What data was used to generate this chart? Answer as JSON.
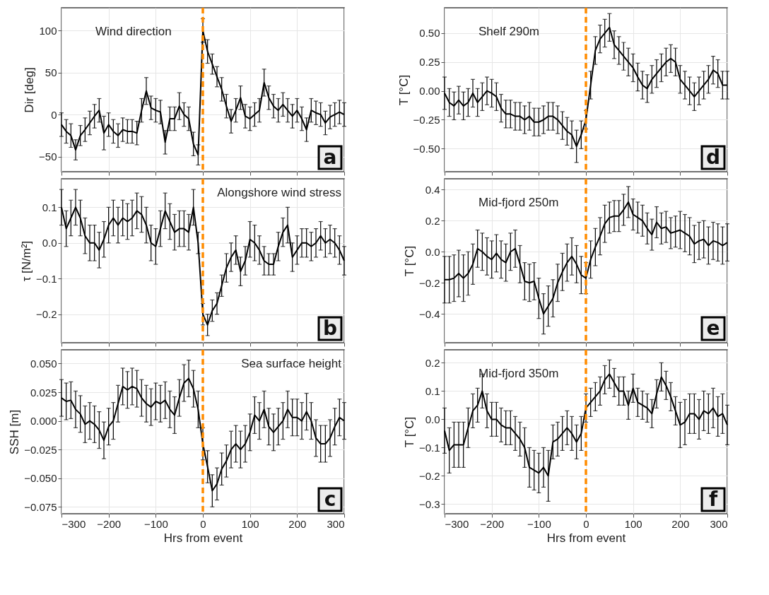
{
  "chart_data": [
    {
      "type": "line",
      "ylabel": "Dir [deg]",
      "annotations": [
        "Wind direction",
        "a"
      ],
      "xlim": [
        -300,
        300
      ],
      "xticks": [
        -300,
        -200,
        -100,
        0,
        100,
        200,
        300
      ],
      "ylim": [
        -68,
        127
      ],
      "yticks": [
        -50,
        0,
        50,
        100
      ],
      "grid": true,
      "marker": "none",
      "line_style": "solid",
      "tick_labels": "y",
      "x": [
        -300,
        -290,
        -280,
        -270,
        -260,
        -250,
        -240,
        -230,
        -220,
        -210,
        -200,
        -190,
        -180,
        -170,
        -160,
        -150,
        -140,
        -130,
        -120,
        -110,
        -100,
        -90,
        -80,
        -70,
        -60,
        -50,
        -40,
        -30,
        -20,
        -10,
        0,
        10,
        20,
        30,
        40,
        50,
        60,
        70,
        80,
        90,
        100,
        110,
        120,
        130,
        140,
        150,
        160,
        170,
        180,
        190,
        200,
        210,
        220,
        230,
        240,
        250,
        260,
        270,
        280,
        290,
        300
      ],
      "series": [
        {
          "color": "#000000",
          "values": [
            -12,
            -20,
            -25,
            -42,
            -25,
            -18,
            -10,
            -2,
            5,
            -22,
            -12,
            -20,
            -25,
            -18,
            -20,
            -20,
            -22,
            5,
            28,
            8,
            5,
            3,
            -33,
            -5,
            -5,
            10,
            0,
            -5,
            -35,
            -48,
            100,
            75,
            60,
            45,
            30,
            10,
            -8,
            5,
            20,
            -2,
            -5,
            0,
            5,
            38,
            20,
            10,
            5,
            12,
            5,
            -2,
            5,
            -5,
            -18,
            5,
            2,
            0,
            -10,
            -3,
            0,
            3,
            0
          ],
          "errors": [
            14,
            14,
            14,
            12,
            12,
            14,
            14,
            14,
            14,
            20,
            14,
            14,
            14,
            14,
            14,
            14,
            14,
            14,
            16,
            14,
            14,
            14,
            14,
            14,
            14,
            16,
            14,
            14,
            14,
            12,
            14,
            14,
            12,
            12,
            14,
            14,
            14,
            14,
            14,
            14,
            14,
            14,
            14,
            16,
            14,
            14,
            14,
            14,
            14,
            14,
            14,
            14,
            14,
            14,
            14,
            14,
            14,
            14,
            14,
            14,
            14
          ]
        }
      ],
      "ref_lines": [
        {
          "axis": "x",
          "value": 0,
          "color": "#ff8c00",
          "line_style": "dashed"
        }
      ]
    },
    {
      "type": "line",
      "ylabel": "T [°C]",
      "annotations": [
        "Shelf 290m",
        "d"
      ],
      "xlim": [
        -300,
        300
      ],
      "xticks": [
        -300,
        -200,
        -100,
        0,
        100,
        200,
        300
      ],
      "ylim": [
        -0.7,
        0.72
      ],
      "yticks": [
        {
          "value": -0.5,
          "label": "−0.50"
        },
        {
          "value": -0.25,
          "label": "−0.25"
        },
        {
          "value": 0,
          "label": "0.00"
        },
        0.25,
        {
          "value": 0.5,
          "label": "0.50"
        }
      ],
      "grid": true,
      "marker": "none",
      "line_style": "solid",
      "tick_labels": "y",
      "x": [
        -300,
        -290,
        -280,
        -270,
        -260,
        -250,
        -240,
        -230,
        -220,
        -210,
        -200,
        -190,
        -180,
        -170,
        -160,
        -150,
        -140,
        -130,
        -120,
        -110,
        -100,
        -90,
        -80,
        -70,
        -60,
        -50,
        -40,
        -30,
        -20,
        -10,
        0,
        10,
        20,
        30,
        40,
        50,
        60,
        70,
        80,
        90,
        100,
        110,
        120,
        130,
        140,
        150,
        160,
        170,
        180,
        190,
        200,
        210,
        220,
        230,
        240,
        250,
        260,
        270,
        280,
        290,
        300
      ],
      "series": [
        {
          "color": "#000000",
          "values": [
            -0.02,
            -0.1,
            -0.13,
            -0.08,
            -0.13,
            -0.1,
            -0.02,
            -0.1,
            -0.05,
            0.0,
            -0.02,
            -0.05,
            -0.15,
            -0.2,
            -0.2,
            -0.22,
            -0.22,
            -0.25,
            -0.22,
            -0.27,
            -0.27,
            -0.25,
            -0.22,
            -0.22,
            -0.25,
            -0.3,
            -0.35,
            -0.38,
            -0.48,
            -0.38,
            -0.25,
            0.05,
            0.35,
            0.45,
            0.5,
            0.55,
            0.4,
            0.35,
            0.3,
            0.25,
            0.2,
            0.12,
            0.05,
            0.02,
            0.1,
            0.15,
            0.2,
            0.25,
            0.28,
            0.25,
            0.1,
            0.05,
            0.0,
            -0.05,
            0.0,
            0.05,
            0.1,
            0.18,
            0.15,
            0.05,
            0.05
          ],
          "errors": [
            0.14,
            0.12,
            0.12,
            0.12,
            0.12,
            0.12,
            0.12,
            0.12,
            0.12,
            0.12,
            0.12,
            0.12,
            0.12,
            0.12,
            0.12,
            0.12,
            0.12,
            0.12,
            0.12,
            0.12,
            0.12,
            0.12,
            0.12,
            0.12,
            0.12,
            0.12,
            0.12,
            0.12,
            0.14,
            0.12,
            0.08,
            0.12,
            0.12,
            0.12,
            0.12,
            0.12,
            0.12,
            0.12,
            0.12,
            0.12,
            0.12,
            0.12,
            0.12,
            0.12,
            0.12,
            0.12,
            0.12,
            0.12,
            0.12,
            0.12,
            0.12,
            0.12,
            0.12,
            0.12,
            0.12,
            0.12,
            0.12,
            0.12,
            0.12,
            0.12,
            0.12
          ]
        }
      ],
      "ref_lines": [
        {
          "axis": "x",
          "value": 0,
          "color": "#ff8c00",
          "line_style": "dashed"
        }
      ]
    },
    {
      "type": "line",
      "ylabel": "τ [N/m²]",
      "annotations": [
        "Alongshore wind stress",
        "b"
      ],
      "xlim": [
        -300,
        300
      ],
      "xticks": [
        -300,
        -200,
        -100,
        0,
        100,
        200,
        300
      ],
      "ylim": [
        -0.28,
        0.18
      ],
      "yticks": [
        -0.2,
        -0.1,
        {
          "value": 0,
          "label": "0.0"
        },
        0.1
      ],
      "grid": true,
      "marker": "none",
      "line_style": "solid",
      "tick_labels": "y",
      "x": [
        -300,
        -290,
        -280,
        -270,
        -260,
        -250,
        -240,
        -230,
        -220,
        -210,
        -200,
        -190,
        -180,
        -170,
        -160,
        -150,
        -140,
        -130,
        -120,
        -110,
        -100,
        -90,
        -80,
        -70,
        -60,
        -50,
        -40,
        -30,
        -20,
        -10,
        0,
        10,
        20,
        30,
        40,
        50,
        60,
        70,
        80,
        90,
        100,
        110,
        120,
        130,
        140,
        150,
        160,
        170,
        180,
        190,
        200,
        210,
        220,
        230,
        240,
        250,
        260,
        270,
        280,
        290,
        300
      ],
      "series": [
        {
          "color": "#000000",
          "values": [
            0.1,
            0.04,
            0.07,
            0.1,
            0.07,
            0.02,
            0.0,
            0.0,
            -0.02,
            0.01,
            0.05,
            0.07,
            0.05,
            0.07,
            0.06,
            0.07,
            0.09,
            0.08,
            0.05,
            0.0,
            -0.01,
            0.04,
            0.09,
            0.06,
            0.03,
            0.04,
            0.04,
            0.03,
            0.1,
            0.0,
            -0.2,
            -0.23,
            -0.19,
            -0.17,
            -0.12,
            -0.07,
            -0.04,
            -0.02,
            -0.08,
            -0.05,
            0.01,
            0.0,
            -0.02,
            -0.05,
            -0.06,
            -0.06,
            -0.01,
            0.03,
            0.05,
            -0.04,
            -0.02,
            0.0,
            0.0,
            -0.01,
            0.0,
            0.02,
            0.0,
            0.01,
            0.0,
            -0.02,
            -0.05
          ],
          "errors": [
            0.05,
            0.05,
            0.05,
            0.05,
            0.05,
            0.05,
            0.05,
            0.05,
            0.05,
            0.05,
            0.05,
            0.05,
            0.05,
            0.05,
            0.05,
            0.05,
            0.05,
            0.05,
            0.05,
            0.05,
            0.05,
            0.05,
            0.05,
            0.05,
            0.05,
            0.05,
            0.05,
            0.05,
            0.05,
            0.03,
            0.03,
            0.03,
            0.03,
            0.03,
            0.03,
            0.04,
            0.04,
            0.04,
            0.04,
            0.04,
            0.05,
            0.05,
            0.04,
            0.04,
            0.03,
            0.03,
            0.04,
            0.04,
            0.05,
            0.04,
            0.04,
            0.04,
            0.04,
            0.04,
            0.04,
            0.04,
            0.04,
            0.04,
            0.04,
            0.04,
            0.04
          ]
        }
      ],
      "ref_lines": [
        {
          "axis": "x",
          "value": 0,
          "color": "#ff8c00",
          "line_style": "dashed"
        }
      ]
    },
    {
      "type": "line",
      "ylabel": "T [°C]",
      "annotations": [
        "Mid-fjord 250m",
        "e"
      ],
      "xlim": [
        -300,
        300
      ],
      "xticks": [
        -300,
        -200,
        -100,
        0,
        100,
        200,
        300
      ],
      "ylim": [
        -0.586,
        0.47
      ],
      "yticks": [
        -0.4,
        -0.2,
        {
          "value": 0,
          "label": "0.0"
        },
        0.2,
        0.4
      ],
      "grid": true,
      "marker": "none",
      "line_style": "solid",
      "tick_labels": "y",
      "x": [
        -300,
        -290,
        -280,
        -270,
        -260,
        -250,
        -240,
        -230,
        -220,
        -210,
        -200,
        -190,
        -180,
        -170,
        -160,
        -150,
        -140,
        -130,
        -120,
        -110,
        -100,
        -90,
        -80,
        -70,
        -60,
        -50,
        -40,
        -30,
        -20,
        -10,
        0,
        10,
        20,
        30,
        40,
        50,
        60,
        70,
        80,
        90,
        100,
        110,
        120,
        130,
        140,
        150,
        160,
        170,
        180,
        190,
        200,
        210,
        220,
        230,
        240,
        250,
        260,
        270,
        280,
        290,
        300
      ],
      "series": [
        {
          "color": "#000000",
          "values": [
            -0.18,
            -0.18,
            -0.17,
            -0.14,
            -0.17,
            -0.14,
            -0.08,
            0.02,
            0.0,
            -0.03,
            -0.05,
            -0.01,
            -0.05,
            -0.07,
            0.0,
            0.02,
            -0.08,
            -0.19,
            -0.2,
            -0.19,
            -0.3,
            -0.4,
            -0.35,
            -0.3,
            -0.2,
            -0.13,
            -0.07,
            -0.03,
            -0.08,
            -0.15,
            -0.17,
            -0.05,
            0.03,
            0.1,
            0.18,
            0.22,
            0.23,
            0.23,
            0.27,
            0.32,
            0.24,
            0.22,
            0.2,
            0.15,
            0.11,
            0.19,
            0.15,
            0.16,
            0.12,
            0.13,
            0.14,
            0.12,
            0.1,
            0.05,
            0.07,
            0.08,
            0.04,
            0.07,
            0.06,
            0.04,
            0.06
          ],
          "errors": [
            0.15,
            0.15,
            0.15,
            0.15,
            0.15,
            0.14,
            0.13,
            0.12,
            0.12,
            0.12,
            0.12,
            0.12,
            0.12,
            0.12,
            0.12,
            0.12,
            0.12,
            0.12,
            0.12,
            0.12,
            0.13,
            0.13,
            0.13,
            0.12,
            0.12,
            0.12,
            0.12,
            0.12,
            0.12,
            0.12,
            0.1,
            0.12,
            0.12,
            0.12,
            0.12,
            0.1,
            0.1,
            0.1,
            0.1,
            0.1,
            0.1,
            0.1,
            0.1,
            0.1,
            0.1,
            0.1,
            0.1,
            0.1,
            0.1,
            0.1,
            0.12,
            0.12,
            0.12,
            0.12,
            0.12,
            0.12,
            0.12,
            0.12,
            0.12,
            0.12,
            0.12
          ]
        }
      ],
      "ref_lines": [
        {
          "axis": "x",
          "value": 0,
          "color": "#ff8c00",
          "line_style": "dashed"
        }
      ]
    },
    {
      "type": "line",
      "xlabel": "Hrs from event",
      "ylabel": "SSH [m]",
      "annotations": [
        "Sea surface height",
        "c"
      ],
      "xlim": [
        -300,
        300
      ],
      "xticks": [
        -300,
        -200,
        -100,
        0,
        100,
        200,
        300
      ],
      "ylim": [
        -0.081,
        0.062
      ],
      "yticks": [
        {
          "value": -0.075,
          "label": "−0.075"
        },
        {
          "value": -0.05,
          "label": "−0.050"
        },
        -0.025,
        {
          "value": 0,
          "label": "0.000"
        },
        0.025,
        {
          "value": 0.05,
          "label": "0.050"
        }
      ],
      "grid": true,
      "marker": "none",
      "line_style": "solid",
      "x": [
        -300,
        -290,
        -280,
        -270,
        -260,
        -250,
        -240,
        -230,
        -220,
        -210,
        -200,
        -190,
        -180,
        -170,
        -160,
        -150,
        -140,
        -130,
        -120,
        -110,
        -100,
        -90,
        -80,
        -70,
        -60,
        -50,
        -40,
        -30,
        -20,
        -10,
        0,
        10,
        20,
        30,
        40,
        50,
        60,
        70,
        80,
        90,
        100,
        110,
        120,
        130,
        140,
        150,
        160,
        170,
        180,
        190,
        200,
        210,
        220,
        230,
        240,
        250,
        260,
        270,
        280,
        290,
        300
      ],
      "series": [
        {
          "color": "#000000",
          "values": [
            0.02,
            0.017,
            0.018,
            0.01,
            0.006,
            -0.003,
            0.0,
            -0.003,
            -0.008,
            -0.017,
            -0.005,
            0.0,
            0.015,
            0.03,
            0.027,
            0.03,
            0.028,
            0.02,
            0.015,
            0.012,
            0.017,
            0.015,
            0.018,
            0.01,
            0.005,
            0.02,
            0.033,
            0.037,
            0.028,
            0.01,
            -0.02,
            -0.04,
            -0.061,
            -0.055,
            -0.042,
            -0.035,
            -0.025,
            -0.02,
            -0.025,
            -0.02,
            -0.01,
            0.005,
            0.0,
            0.01,
            -0.005,
            -0.01,
            -0.005,
            0.0,
            0.01,
            0.003,
            0.003,
            0.0,
            0.008,
            0.0,
            -0.015,
            -0.02,
            -0.02,
            -0.015,
            -0.005,
            0.003,
            0.0
          ],
          "errors": [
            0.016,
            0.016,
            0.016,
            0.016,
            0.016,
            0.016,
            0.016,
            0.016,
            0.016,
            0.016,
            0.016,
            0.016,
            0.016,
            0.016,
            0.016,
            0.016,
            0.016,
            0.016,
            0.016,
            0.016,
            0.016,
            0.016,
            0.016,
            0.016,
            0.016,
            0.016,
            0.016,
            0.016,
            0.016,
            0.016,
            0.014,
            0.014,
            0.014,
            0.014,
            0.014,
            0.014,
            0.016,
            0.016,
            0.016,
            0.016,
            0.016,
            0.016,
            0.016,
            0.016,
            0.016,
            0.016,
            0.016,
            0.016,
            0.016,
            0.016,
            0.016,
            0.016,
            0.016,
            0.016,
            0.016,
            0.016,
            0.016,
            0.016,
            0.016,
            0.016,
            0.016
          ]
        }
      ],
      "ref_lines": [
        {
          "axis": "x",
          "value": 0,
          "color": "#ff8c00",
          "line_style": "dashed"
        }
      ]
    },
    {
      "type": "line",
      "xlabel": "Hrs from event",
      "ylabel": "T [°C]",
      "annotations": [
        "Mid-fjord 350m",
        "f"
      ],
      "xlim": [
        -300,
        300
      ],
      "xticks": [
        -300,
        -200,
        -100,
        0,
        100,
        200,
        300
      ],
      "ylim": [
        -0.334,
        0.246
      ],
      "yticks": [
        -0.3,
        -0.2,
        -0.1,
        {
          "value": 0,
          "label": "0.0"
        },
        0.1,
        0.2
      ],
      "grid": true,
      "marker": "none",
      "line_style": "solid",
      "x": [
        -300,
        -290,
        -280,
        -270,
        -260,
        -250,
        -240,
        -230,
        -220,
        -210,
        -200,
        -190,
        -180,
        -170,
        -160,
        -150,
        -140,
        -130,
        -120,
        -110,
        -100,
        -90,
        -80,
        -70,
        -60,
        -50,
        -40,
        -30,
        -20,
        -10,
        0,
        10,
        20,
        30,
        40,
        50,
        60,
        70,
        80,
        90,
        100,
        110,
        120,
        130,
        140,
        150,
        160,
        170,
        180,
        190,
        200,
        210,
        220,
        230,
        240,
        250,
        260,
        270,
        280,
        290,
        300
      ],
      "series": [
        {
          "color": "#000000",
          "values": [
            -0.04,
            -0.11,
            -0.09,
            -0.09,
            -0.09,
            -0.03,
            0.03,
            0.05,
            0.1,
            0.03,
            0.0,
            0.0,
            -0.02,
            -0.03,
            -0.03,
            -0.05,
            -0.07,
            -0.1,
            -0.17,
            -0.18,
            -0.19,
            -0.17,
            -0.2,
            -0.08,
            -0.07,
            -0.05,
            -0.03,
            -0.05,
            -0.08,
            -0.05,
            0.04,
            0.06,
            0.08,
            0.1,
            0.14,
            0.16,
            0.13,
            0.1,
            0.1,
            0.05,
            0.11,
            0.06,
            0.05,
            0.04,
            0.02,
            0.09,
            0.15,
            0.12,
            0.08,
            0.03,
            -0.02,
            -0.01,
            0.02,
            0.02,
            0.0,
            0.03,
            0.02,
            0.04,
            0.01,
            0.02,
            -0.02
          ],
          "errors": [
            0.08,
            0.08,
            0.08,
            0.08,
            0.08,
            0.07,
            0.06,
            0.06,
            0.06,
            0.06,
            0.06,
            0.06,
            0.06,
            0.06,
            0.06,
            0.06,
            0.06,
            0.07,
            0.07,
            0.07,
            0.07,
            0.07,
            0.09,
            0.06,
            0.06,
            0.06,
            0.06,
            0.06,
            0.06,
            0.06,
            0.05,
            0.05,
            0.05,
            0.05,
            0.05,
            0.05,
            0.05,
            0.05,
            0.05,
            0.05,
            0.05,
            0.05,
            0.05,
            0.05,
            0.05,
            0.05,
            0.05,
            0.05,
            0.05,
            0.05,
            0.08,
            0.08,
            0.07,
            0.07,
            0.07,
            0.07,
            0.07,
            0.07,
            0.07,
            0.07,
            0.07
          ]
        }
      ],
      "ref_lines": [
        {
          "axis": "x",
          "value": 0,
          "color": "#ff8c00",
          "line_style": "dashed"
        }
      ]
    }
  ]
}
